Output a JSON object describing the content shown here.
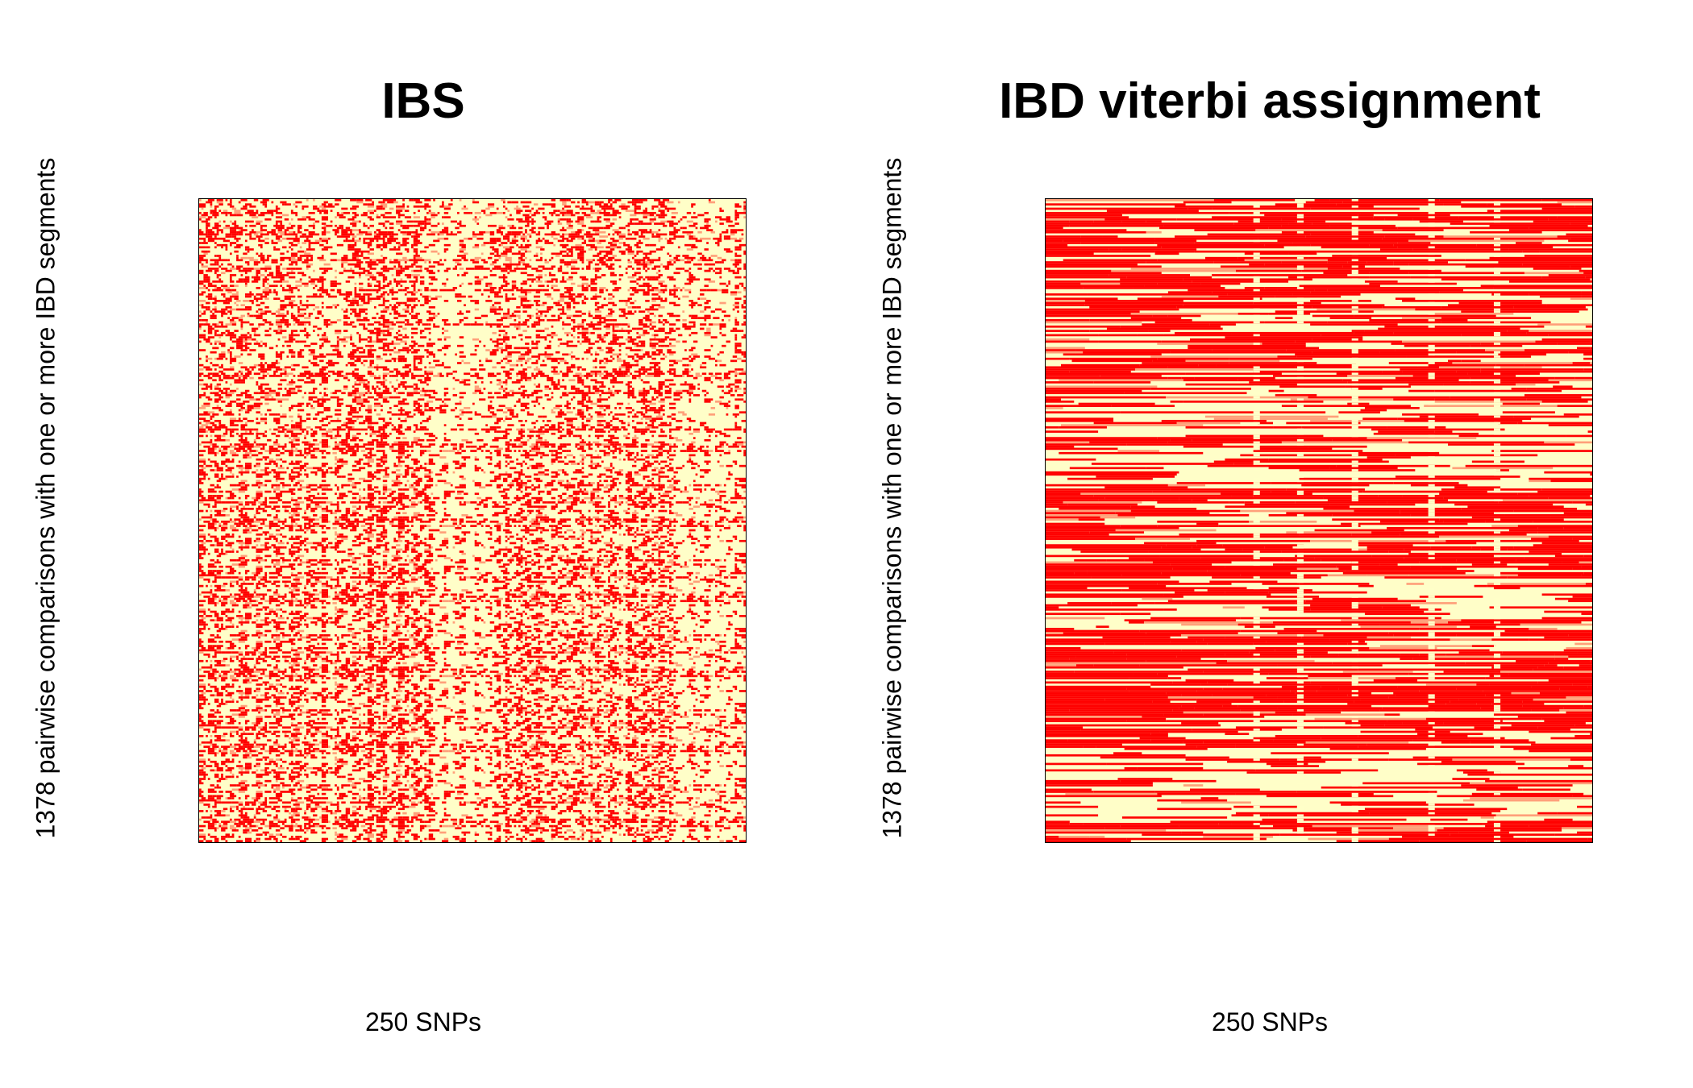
{
  "colors": {
    "background": "#FFFFC8",
    "ibd": "#FF0000",
    "partial": "#FFA07A"
  },
  "chart_data": [
    {
      "type": "heatmap",
      "title": "IBS",
      "xlabel": "250 SNPs",
      "ylabel": "1378 pairwise comparisons with one or more IBD segments",
      "n_columns": 250,
      "n_rows": 1378,
      "grid": false,
      "pattern": "sparse-vertical-streaks"
    },
    {
      "type": "heatmap",
      "title": "IBD viterbi assignment",
      "xlabel": "250 SNPs",
      "ylabel": "1378 pairwise comparisons with one or more IBD segments",
      "n_columns": 250,
      "n_rows": 1378,
      "grid": false,
      "pattern": "dense-horizontal-segments"
    }
  ]
}
